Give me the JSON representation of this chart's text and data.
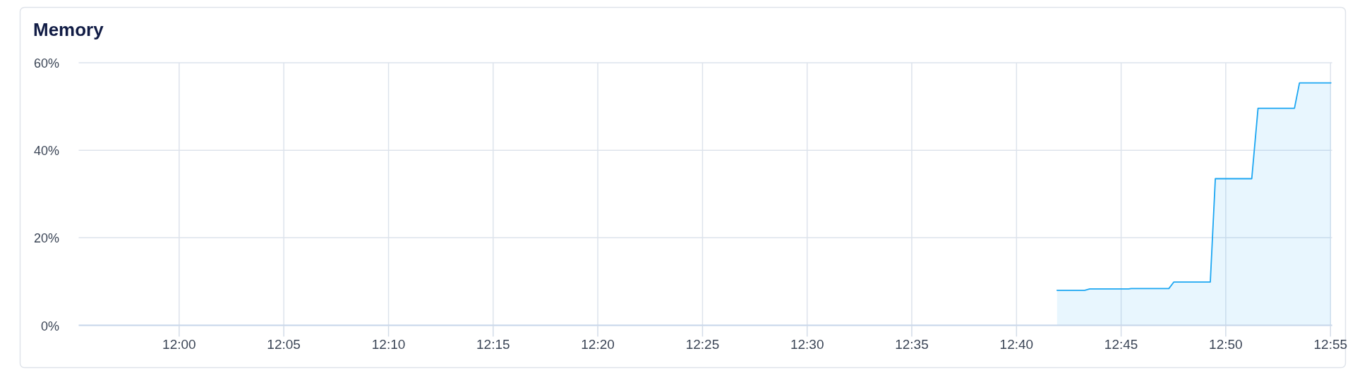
{
  "chart_data": {
    "type": "area",
    "title": "Memory",
    "x": [
      12.699,
      12.721,
      12.725,
      12.756,
      12.758,
      12.788,
      12.792,
      12.821,
      12.825,
      12.854,
      12.859,
      12.888,
      12.892,
      12.917
    ],
    "values": [
      8.0,
      8.0,
      8.3,
      8.3,
      8.4,
      8.4,
      9.9,
      9.9,
      33.5,
      33.5,
      49.6,
      49.6,
      55.4,
      55.4
    ],
    "color": "#1ba6f2",
    "xlim": [
      11.92,
      12.918
    ],
    "xticks": [
      {
        "value": 12,
        "label": "12:00"
      },
      {
        "value": 12.0833,
        "label": "12:05"
      },
      {
        "value": 12.1667,
        "label": "12:10"
      },
      {
        "value": 12.25,
        "label": "12:15"
      },
      {
        "value": 12.3333,
        "label": "12:20"
      },
      {
        "value": 12.4167,
        "label": "12:25"
      },
      {
        "value": 12.5,
        "label": "12:30"
      },
      {
        "value": 12.5833,
        "label": "12:35"
      },
      {
        "value": 12.6667,
        "label": "12:40"
      },
      {
        "value": 12.75,
        "label": "12:45"
      },
      {
        "value": 12.8333,
        "label": "12:50"
      },
      {
        "value": 12.9167,
        "label": "12:55"
      }
    ],
    "ylim": [
      0,
      60
    ],
    "yticks": [
      {
        "value": 0,
        "label": "0%"
      },
      {
        "value": 20,
        "label": "20%"
      },
      {
        "value": 40,
        "label": "40%"
      },
      {
        "value": 60,
        "label": "60%"
      }
    ],
    "grid": true
  }
}
